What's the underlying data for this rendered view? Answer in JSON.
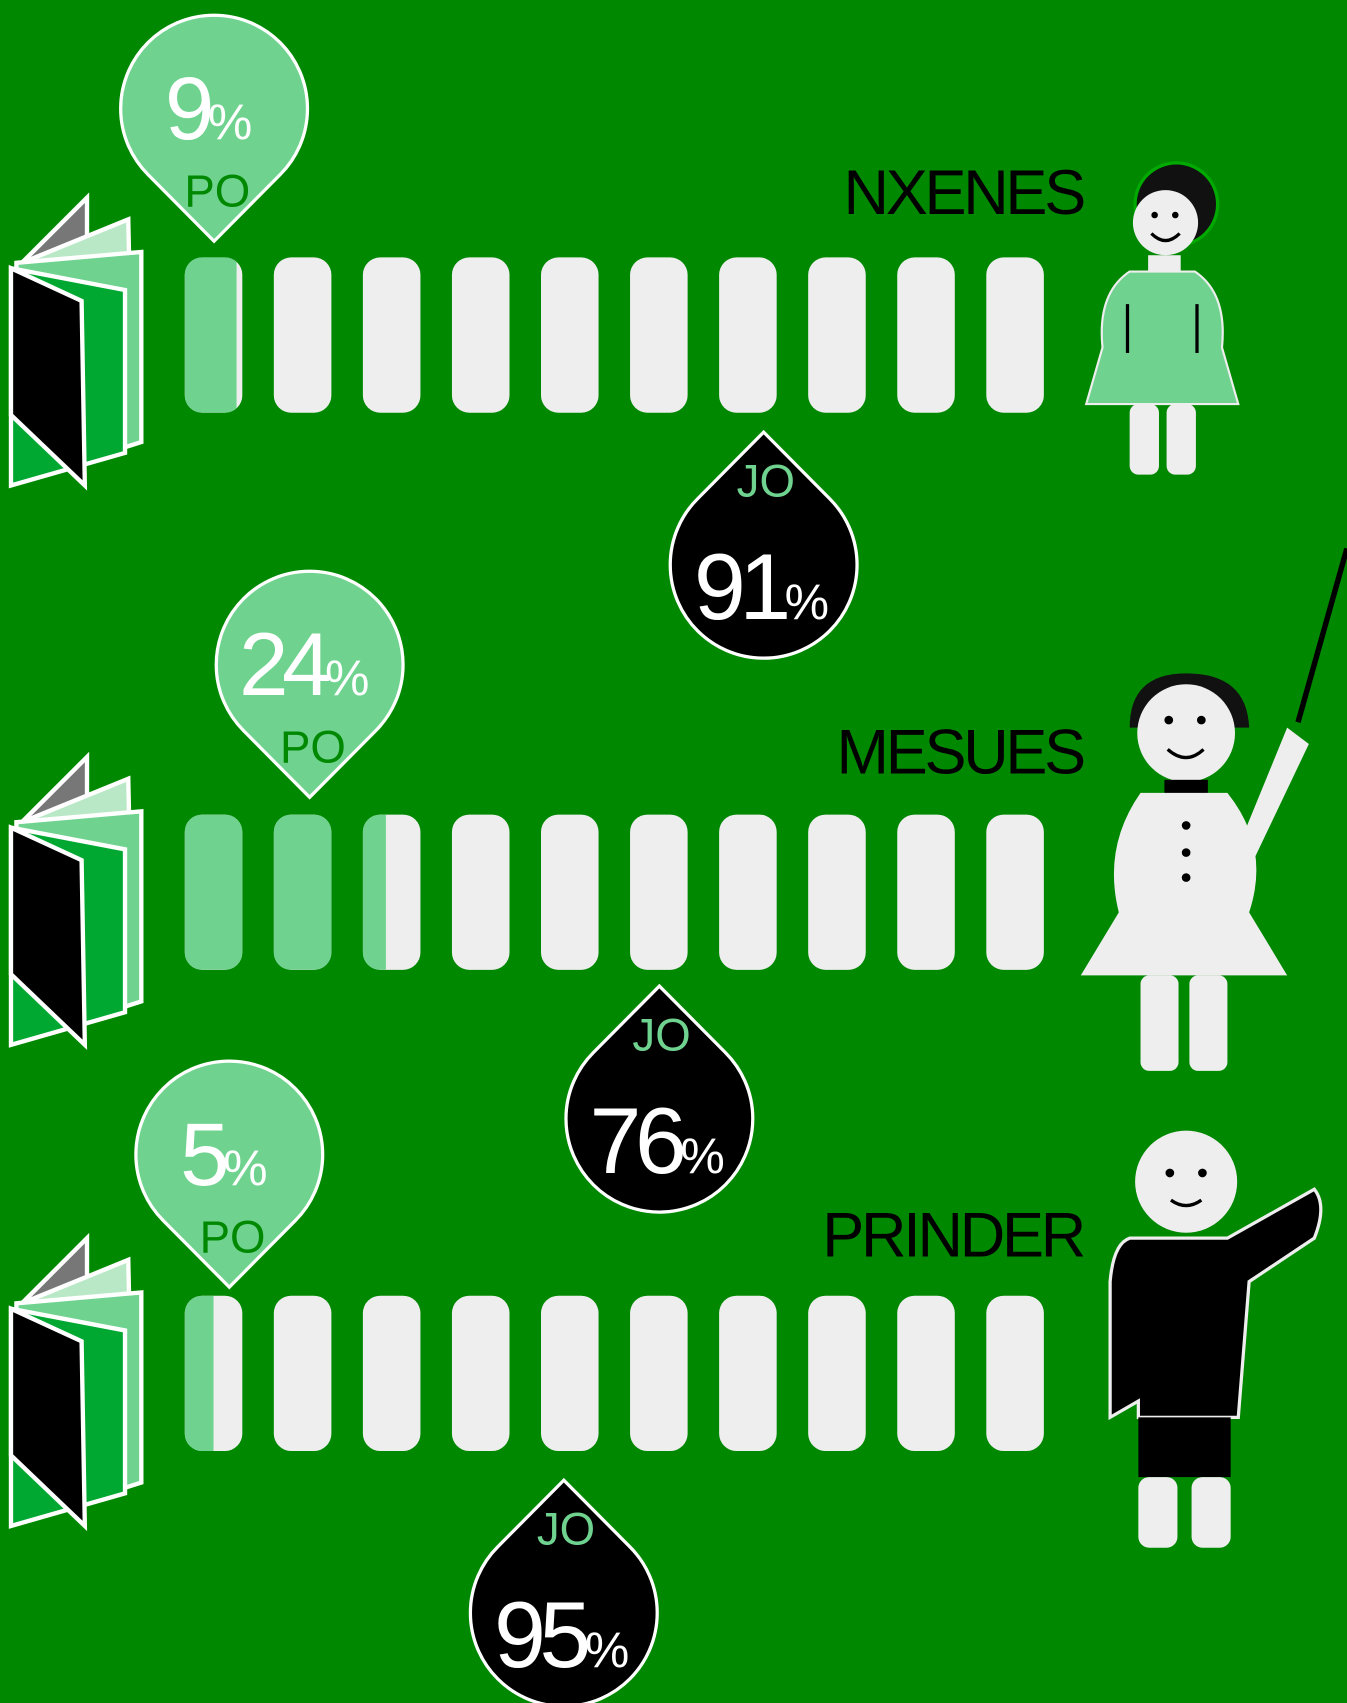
{
  "unit": "%",
  "rows": [
    {
      "label": "NXENES",
      "po": {
        "label": "PO",
        "value": 9
      },
      "jo": {
        "label": "JO",
        "value": 91
      }
    },
    {
      "label": "MESUES",
      "po": {
        "label": "PO",
        "value": 24
      },
      "jo": {
        "label": "JO",
        "value": 76
      }
    },
    {
      "label": "PRINDER",
      "po": {
        "label": "PO",
        "value": 5
      },
      "jo": {
        "label": "JO",
        "value": 95
      }
    }
  ]
}
